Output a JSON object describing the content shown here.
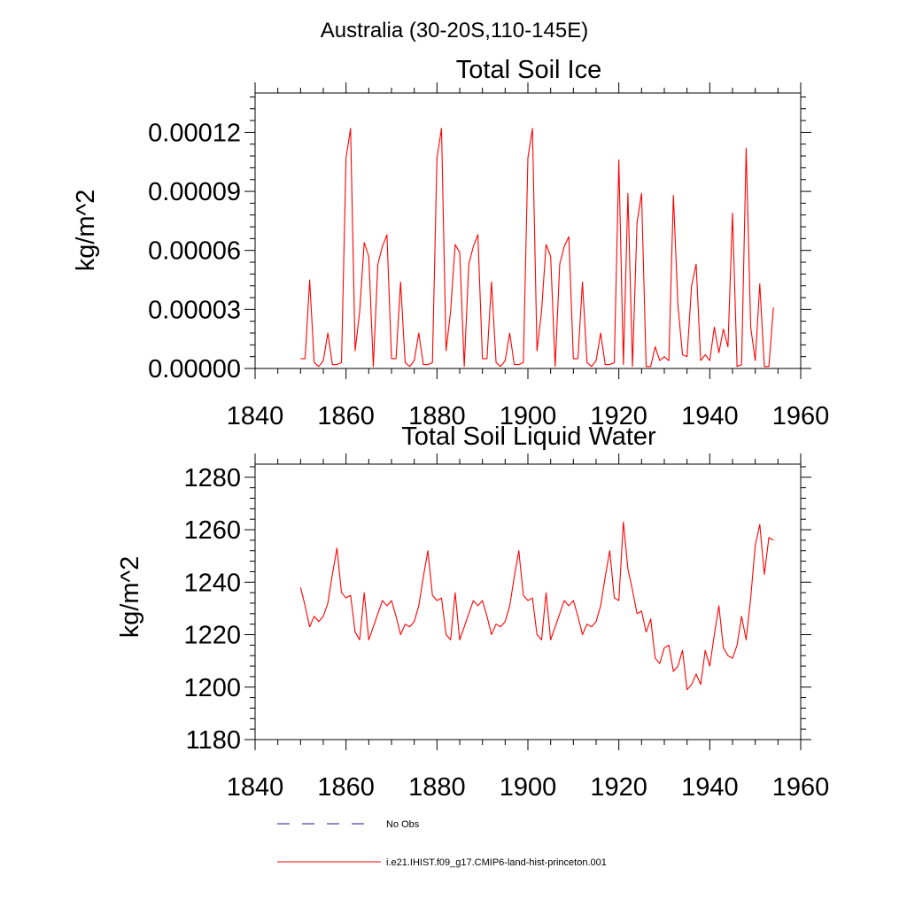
{
  "figure_title": "Australia (30-20S,110-145E)",
  "legend": {
    "items": [
      {
        "label": "No Obs",
        "style": "dashed",
        "color": "#1a1a8c"
      },
      {
        "label": "i.e21.IHIST.f09_g17.CMIP6-land-hist-princeton.001",
        "style": "solid",
        "color": "#ff0000"
      }
    ]
  },
  "chart_data": [
    {
      "type": "line",
      "title": "Total Soil Ice",
      "xlabel": "",
      "ylabel": "kg/m^2",
      "xlim": [
        1840,
        1960
      ],
      "ylim": [
        0,
        0.00014
      ],
      "xticks": [
        "1840",
        "1860",
        "1880",
        "1900",
        "1920",
        "1940",
        "1960"
      ],
      "yticks": [
        "0.00000",
        "0.00003",
        "0.00006",
        "0.00009",
        "0.00012"
      ],
      "ytick_values": [
        0,
        3e-05,
        6e-05,
        9e-05,
        0.00012
      ],
      "series": [
        {
          "color": "#ff0000",
          "x": [
            1850,
            1851,
            1852,
            1853,
            1854,
            1855,
            1856,
            1857,
            1858,
            1859,
            1860,
            1861,
            1862,
            1863,
            1864,
            1865,
            1866,
            1867,
            1868,
            1869,
            1870,
            1871,
            1872,
            1873,
            1874,
            1875,
            1876,
            1877,
            1878,
            1879,
            1880,
            1881,
            1882,
            1883,
            1884,
            1885,
            1886,
            1887,
            1888,
            1889,
            1890,
            1891,
            1892,
            1893,
            1894,
            1895,
            1896,
            1897,
            1898,
            1899,
            1900,
            1901,
            1902,
            1903,
            1904,
            1905,
            1906,
            1907,
            1908,
            1909,
            1910,
            1911,
            1912,
            1913,
            1914,
            1915,
            1916,
            1917,
            1918,
            1919,
            1920,
            1921,
            1922,
            1923,
            1924,
            1925,
            1926,
            1927,
            1928,
            1929,
            1930,
            1931,
            1932,
            1933,
            1934,
            1935,
            1936,
            1937,
            1938,
            1939,
            1940,
            1941,
            1942,
            1943,
            1944,
            1945,
            1946,
            1947,
            1948,
            1949,
            1950,
            1951,
            1952,
            1953,
            1954
          ],
          "values": [
            5e-06,
            5e-06,
            4.5e-05,
            3e-06,
            1e-06,
            4e-06,
            1.8e-05,
            2e-06,
            2e-06,
            3e-06,
            0.000107,
            0.000122,
            9e-06,
            2.9e-05,
            6.4e-05,
            5.7e-05,
            1e-06,
            5.3e-05,
            6.2e-05,
            6.8e-05,
            5e-06,
            5e-06,
            4.4e-05,
            3e-06,
            1e-06,
            4e-06,
            1.8e-05,
            2e-06,
            2e-06,
            3e-06,
            0.000107,
            0.000122,
            9e-06,
            2.9e-05,
            6.3e-05,
            5.9e-05,
            1e-06,
            5.3e-05,
            6.2e-05,
            6.8e-05,
            5e-06,
            5e-06,
            4.4e-05,
            3e-06,
            1e-06,
            4e-06,
            1.8e-05,
            2e-06,
            2e-06,
            3e-06,
            0.000107,
            0.000122,
            9e-06,
            2.9e-05,
            6.3e-05,
            5.7e-05,
            1e-06,
            5.3e-05,
            6.2e-05,
            6.7e-05,
            5e-06,
            5e-06,
            4.4e-05,
            3e-06,
            1e-06,
            4e-06,
            1.8e-05,
            2e-06,
            2e-06,
            3e-06,
            0.000106,
            2e-06,
            8.9e-05,
            1e-06,
            7.4e-05,
            8.9e-05,
            1e-06,
            1e-06,
            1.1e-05,
            4e-06,
            6e-06,
            4e-06,
            8.8e-05,
            3.2e-05,
            7e-06,
            6e-06,
            4.2e-05,
            5.3e-05,
            4e-06,
            7e-06,
            4e-06,
            2.1e-05,
            8e-06,
            2e-05,
            1.1e-05,
            7.9e-05,
            1e-06,
            2e-06,
            0.000112,
            2.1e-05,
            4e-06,
            4.3e-05,
            1e-06,
            1e-06,
            3.1e-05
          ]
        }
      ]
    },
    {
      "type": "line",
      "title": "Total Soil Liquid Water",
      "xlabel": "",
      "ylabel": "kg/m^2",
      "xlim": [
        1840,
        1960
      ],
      "ylim": [
        1180,
        1285
      ],
      "xticks": [
        "1840",
        "1860",
        "1880",
        "1900",
        "1920",
        "1940",
        "1960"
      ],
      "yticks": [
        "1180",
        "1200",
        "1220",
        "1240",
        "1260",
        "1280"
      ],
      "ytick_values": [
        1180,
        1200,
        1220,
        1240,
        1260,
        1280
      ],
      "series": [
        {
          "color": "#ff0000",
          "x": [
            1850,
            1851,
            1852,
            1853,
            1854,
            1855,
            1856,
            1857,
            1858,
            1859,
            1860,
            1861,
            1862,
            1863,
            1864,
            1865,
            1866,
            1867,
            1868,
            1869,
            1870,
            1871,
            1872,
            1873,
            1874,
            1875,
            1876,
            1877,
            1878,
            1879,
            1880,
            1881,
            1882,
            1883,
            1884,
            1885,
            1886,
            1887,
            1888,
            1889,
            1890,
            1891,
            1892,
            1893,
            1894,
            1895,
            1896,
            1897,
            1898,
            1899,
            1900,
            1901,
            1902,
            1903,
            1904,
            1905,
            1906,
            1907,
            1908,
            1909,
            1910,
            1911,
            1912,
            1913,
            1914,
            1915,
            1916,
            1917,
            1918,
            1919,
            1920,
            1921,
            1922,
            1923,
            1924,
            1925,
            1926,
            1927,
            1928,
            1929,
            1930,
            1931,
            1932,
            1933,
            1934,
            1935,
            1936,
            1937,
            1938,
            1939,
            1940,
            1941,
            1942,
            1943,
            1944,
            1945,
            1946,
            1947,
            1948,
            1949,
            1950,
            1951,
            1952,
            1953,
            1954
          ],
          "values": [
            1238,
            1231,
            1223,
            1227,
            1225,
            1227,
            1232,
            1243,
            1253,
            1236,
            1234,
            1235,
            1221,
            1218,
            1236,
            1218,
            1223,
            1228,
            1233,
            1231,
            1233,
            1227,
            1220,
            1224,
            1223,
            1225,
            1231,
            1242,
            1252,
            1235,
            1233,
            1234,
            1220,
            1218,
            1236,
            1218,
            1223,
            1228,
            1233,
            1231,
            1233,
            1227,
            1220,
            1224,
            1223,
            1225,
            1231,
            1242,
            1252,
            1235,
            1233,
            1234,
            1220,
            1218,
            1236,
            1218,
            1223,
            1228,
            1233,
            1231,
            1233,
            1227,
            1220,
            1224,
            1223,
            1225,
            1231,
            1242,
            1252,
            1234,
            1233,
            1263,
            1245,
            1237,
            1228,
            1229,
            1221,
            1226,
            1211,
            1209,
            1215,
            1216,
            1206,
            1208,
            1214,
            1199,
            1201,
            1205,
            1201,
            1214,
            1208,
            1220,
            1231,
            1215,
            1212,
            1211,
            1216,
            1227,
            1218,
            1234,
            1254,
            1262,
            1243,
            1257,
            1256
          ]
        }
      ]
    }
  ]
}
